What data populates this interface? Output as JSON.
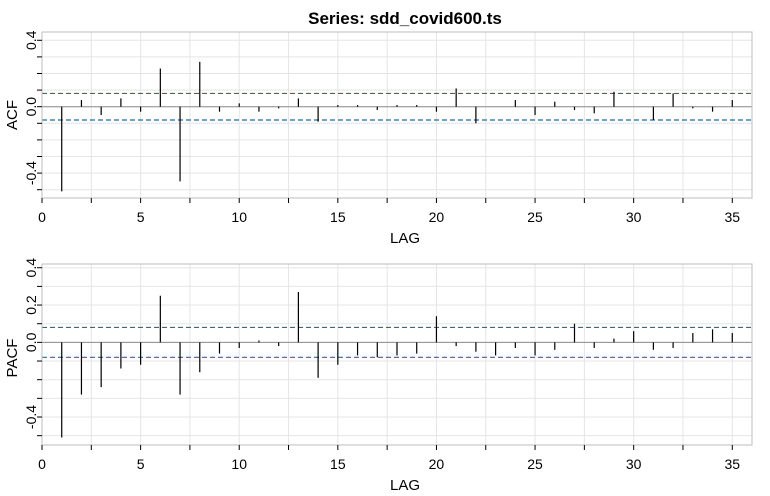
{
  "chart_data": [
    {
      "type": "bar",
      "panel": "acf",
      "title": "Series:  sdd_covid600.ts",
      "xlabel": "LAG",
      "ylabel": "ACF",
      "xlim": [
        0,
        36
      ],
      "ylim": [
        -0.55,
        0.45
      ],
      "xticks": [
        0,
        5,
        10,
        15,
        20,
        25,
        30,
        35
      ],
      "yticks": [
        0.4,
        0.0,
        -0.4
      ],
      "ytick_labels": [
        "0.4",
        "0.0",
        "-0.4"
      ],
      "confidence_bound": 0.08,
      "grid": true,
      "lag": [
        1,
        2,
        3,
        4,
        5,
        6,
        7,
        8,
        9,
        10,
        11,
        12,
        13,
        14,
        15,
        16,
        17,
        18,
        19,
        20,
        21,
        22,
        23,
        24,
        25,
        26,
        27,
        28,
        29,
        30,
        31,
        32,
        33,
        34,
        35
      ],
      "values": [
        -0.51,
        0.04,
        -0.05,
        0.05,
        -0.03,
        0.23,
        -0.45,
        0.27,
        -0.03,
        0.02,
        -0.03,
        -0.01,
        0.05,
        -0.09,
        0.01,
        0.01,
        -0.02,
        0.01,
        0.01,
        -0.03,
        0.11,
        -0.1,
        0.0,
        0.04,
        -0.05,
        0.03,
        -0.02,
        -0.04,
        0.09,
        0.0,
        -0.08,
        0.08,
        -0.01,
        -0.03,
        0.04
      ]
    },
    {
      "type": "bar",
      "panel": "pacf",
      "title": "",
      "xlabel": "LAG",
      "ylabel": "PACF",
      "xlim": [
        0,
        36
      ],
      "ylim": [
        -0.55,
        0.42
      ],
      "xticks": [
        0,
        5,
        10,
        15,
        20,
        25,
        30,
        35
      ],
      "yticks": [
        0.4,
        0.2,
        0.0,
        -0.4
      ],
      "ytick_labels": [
        "0.4",
        "0.2",
        "0.0",
        "-0.4"
      ],
      "confidence_bound": 0.08,
      "grid": true,
      "lag": [
        1,
        2,
        3,
        4,
        5,
        6,
        7,
        8,
        9,
        10,
        11,
        12,
        13,
        14,
        15,
        16,
        17,
        18,
        19,
        20,
        21,
        22,
        23,
        24,
        25,
        26,
        27,
        28,
        29,
        30,
        31,
        32,
        33,
        34,
        35
      ],
      "values": [
        -0.51,
        -0.28,
        -0.24,
        -0.14,
        -0.12,
        0.25,
        -0.28,
        -0.16,
        -0.06,
        -0.03,
        0.01,
        -0.02,
        0.27,
        -0.19,
        -0.12,
        -0.07,
        -0.08,
        -0.07,
        -0.06,
        0.14,
        -0.02,
        -0.05,
        -0.07,
        -0.03,
        -0.07,
        -0.04,
        0.1,
        -0.03,
        0.02,
        0.06,
        -0.04,
        -0.03,
        0.05,
        0.07,
        0.05
      ]
    }
  ],
  "colors": {
    "panel_border": "#bebebe",
    "grid": "#e5e5e5",
    "zero_line": "#8c8c8c",
    "bars": "#000000",
    "confidence": "#1f6f9f",
    "text": "#000000"
  }
}
